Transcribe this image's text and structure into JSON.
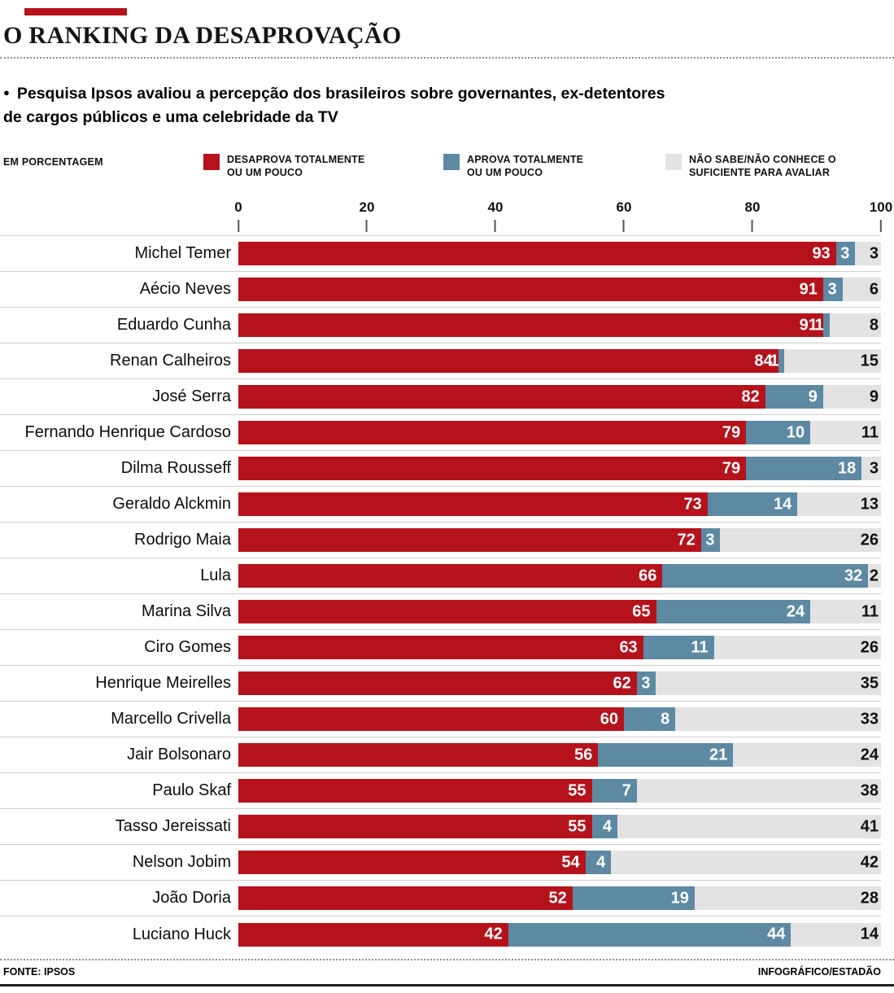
{
  "colors": {
    "accent": "#b5121b",
    "disapprove": "#b5121b",
    "approve": "#5e89a2",
    "unknown": "#e3e3e3"
  },
  "header": {
    "title": "O RANKING DA DESAPROVAÇÃO",
    "bullet": "●",
    "subtitle_line1": "Pesquisa Ipsos avaliou a percepção dos brasileiros sobre governantes, ex-detentores",
    "subtitle_line2": "de cargos públicos e uma celebridade da TV"
  },
  "legend": {
    "unit_label": "EM PORCENTAGEM",
    "items": [
      {
        "line1": "DESAPROVA TOTALMENTE",
        "line2": "OU UM POUCO",
        "color": "#b5121b"
      },
      {
        "line1": "APROVA TOTALMENTE",
        "line2": "OU UM POUCO",
        "color": "#5e89a2"
      },
      {
        "line1": "NÃO SABE/NÃO CONHECE O",
        "line2": "SUFICIENTE PARA AVALIAR",
        "color": "#e3e3e3"
      }
    ]
  },
  "chart_data": {
    "type": "bar",
    "orientation": "horizontal",
    "stacked": true,
    "unit": "percent",
    "xlim": [
      0,
      100
    ],
    "x_ticks": [
      0,
      20,
      40,
      60,
      80,
      100
    ],
    "grid": false,
    "legend_position": "top",
    "categories": [
      "Michel Temer",
      "Aécio Neves",
      "Eduardo Cunha",
      "Renan Calheiros",
      "José Serra",
      "Fernando Henrique Cardoso",
      "Dilma Rousseff",
      "Geraldo Alckmin",
      "Rodrigo Maia",
      "Lula",
      "Marina Silva",
      "Ciro Gomes",
      "Henrique Meirelles",
      "Marcello Crivella",
      "Jair Bolsonaro",
      "Paulo Skaf",
      "Tasso Jereissati",
      "Nelson Jobim",
      "João Doria",
      "Luciano Huck"
    ],
    "series": [
      {
        "name": "Desaprova totalmente ou um pouco",
        "color": "#b5121b",
        "values": [
          93,
          91,
          91,
          84,
          82,
          79,
          79,
          73,
          72,
          66,
          65,
          63,
          62,
          60,
          56,
          55,
          55,
          54,
          52,
          42
        ]
      },
      {
        "name": "Aprova totalmente ou um pouco",
        "color": "#5e89a2",
        "values": [
          3,
          3,
          1,
          1,
          9,
          10,
          18,
          14,
          3,
          32,
          24,
          11,
          3,
          8,
          21,
          7,
          4,
          4,
          19,
          44
        ]
      },
      {
        "name": "Não sabe/não conhece o suficiente para avaliar",
        "color": "#e3e3e3",
        "values": [
          3,
          6,
          8,
          15,
          9,
          11,
          3,
          13,
          26,
          2,
          11,
          26,
          35,
          33,
          24,
          38,
          41,
          42,
          28,
          14
        ]
      }
    ]
  },
  "footer": {
    "source_label": "FONTE:",
    "source_value": "IPSOS",
    "credit": "INFOGRÁFICO/ESTADÃO"
  }
}
